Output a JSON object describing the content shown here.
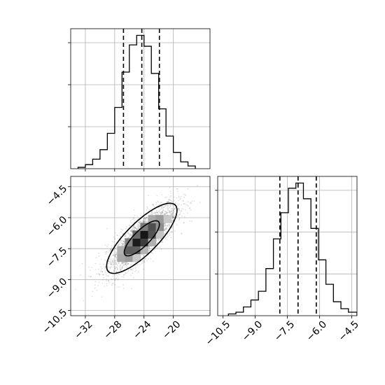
{
  "chart_data": {
    "type": "corner",
    "title": "",
    "parameters": [
      {
        "name": "",
        "xlim": [
          -34,
          -15
        ],
        "ticks": [
          -32,
          -28,
          -24,
          -20
        ],
        "tick_labels": [
          "−32",
          "−28",
          "−24",
          "−20"
        ],
        "quantiles": [
          -26.8,
          -24.3,
          -21.9
        ],
        "histogram": {
          "bin_edges": [
            -33.0,
            -32.0,
            -31.0,
            -30.0,
            -29.0,
            -28.0,
            -27.0,
            -26.0,
            -25.0,
            -24.0,
            -23.0,
            -22.0,
            -21.0,
            -20.0,
            -19.0,
            -18.0,
            -17.0
          ],
          "counts": [
            1,
            3,
            7,
            14,
            26,
            45,
            71,
            91,
            98,
            90,
            70,
            44,
            24,
            12,
            5,
            2
          ]
        }
      },
      {
        "name": "",
        "xlim": [
          -10.75,
          -4.25
        ],
        "ticks": [
          -10.5,
          -9.0,
          -7.5,
          -6.0,
          -4.5
        ],
        "tick_labels": [
          "−10.5",
          "−9.0",
          "−7.5",
          "−6.0",
          "−4.5"
        ],
        "quantiles": [
          -7.85,
          -7.0,
          -6.15
        ],
        "histogram": {
          "bin_edges": [
            -10.25,
            -9.9,
            -9.55,
            -9.2,
            -8.85,
            -8.5,
            -8.15,
            -7.8,
            -7.45,
            -7.1,
            -6.75,
            -6.4,
            -6.05,
            -5.7,
            -5.35,
            -5.0,
            -4.65,
            -4.25
          ],
          "counts": [
            1,
            2,
            5,
            9,
            14,
            27,
            44,
            59,
            73,
            76,
            67,
            50,
            32,
            18,
            8,
            4,
            2
          ]
        }
      }
    ],
    "joint": {
      "x_param": 0,
      "y_param": 1,
      "ylim": [
        -10.75,
        -4.0
      ],
      "y_ticks": [
        -4.5,
        -6.0,
        -7.5,
        -9.0,
        -10.5
      ],
      "y_tick_labels": [
        "−4.5",
        "−6.0",
        "−7.5",
        "−9.0",
        "−10.5"
      ],
      "mean": [
        -24.3,
        -7.0
      ],
      "std": [
        2.4,
        0.85
      ],
      "correlation": 0.8,
      "contour_levels_sigma": [
        1,
        2
      ],
      "density_shading": true,
      "scatter_points": true
    },
    "grid": true,
    "hist_y_ticks_labeled": false
  }
}
